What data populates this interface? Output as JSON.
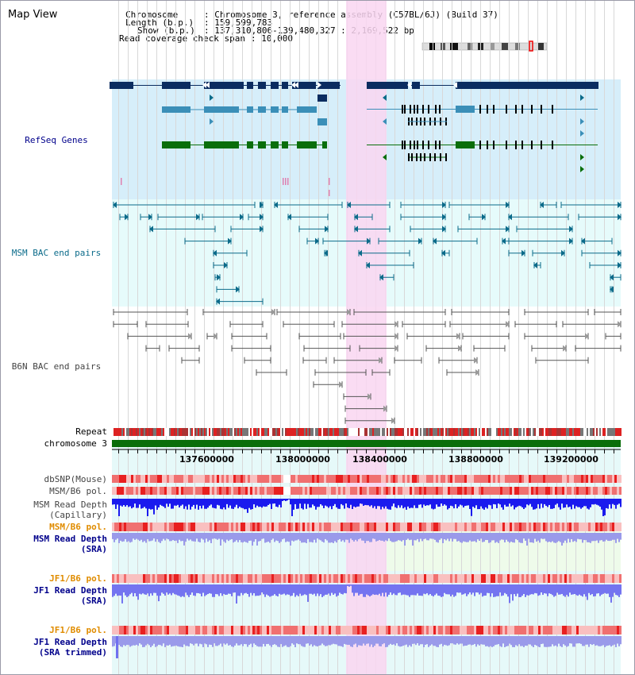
{
  "window": {
    "title": "Map View"
  },
  "info": {
    "chromosome_label": "Chromosome",
    "chromosome_value": ": Chromosome 3, reference assembly (C57BL/6J) (Build 37)",
    "length_label": "Length (b.p.)",
    "length_value": ": 159,599,783",
    "show_label": "Show (b.p.)",
    "show_value": ": 137,310,806-139,480,327 : 2,169,522 bp",
    "coverage_label": "Read coverage check span",
    "coverage_value": ": 10,000"
  },
  "tracks": {
    "refseq": "RefSeq Genes",
    "msm_bac": "MSM BAC end pairs",
    "b6n_bac": "B6N BAC end pairs",
    "repeat": "Repeat",
    "chromosome": "chromosome 3",
    "dbsnp": "dbSNP(Mouse)",
    "msm_b6_pol_1": "MSM/B6 pol.",
    "msm_depth_cap_1": "MSM Read Depth",
    "msm_depth_cap_2": "(Capillary)",
    "msm_b6_pol_2": "MSM/B6 pol.",
    "msm_depth_sra_1": "MSM Read Depth",
    "msm_depth_sra_2": "(SRA)",
    "jf1_b6_pol_1": "JF1/B6 pol.",
    "jf1_depth_sra_1": "JF1 Read Depth",
    "jf1_depth_sra_2": "(SRA)",
    "jf1_b6_pol_2": "JF1/B6 pol.",
    "jf1_depth_trim_1": "JF1 Read Depth",
    "jf1_depth_trim_2": "(SRA trimmed)"
  },
  "axis": {
    "ticks": [
      "137600000",
      "138000000",
      "138400000",
      "138800000",
      "139200000"
    ]
  },
  "colors": {
    "refseq_bg": "#d6eefa",
    "bac_bg": "#e6fbfb",
    "highlight": "#f9d6f1",
    "gene_navy": "#0b2c60",
    "gene_blue": "#3b8fb8",
    "gene_green": "#0a6e0a",
    "msm_bac": "#0b6b8a",
    "b6n_bac": "#555555",
    "chromosome": "#0a6e0a",
    "depth_capillary": "#1a1aee",
    "depth_sra": "#9a9aea",
    "depth_jf1": "#7474f0",
    "label_orange": "#e08c00",
    "label_navy": "#00008b",
    "label_gray": "#444444"
  }
}
